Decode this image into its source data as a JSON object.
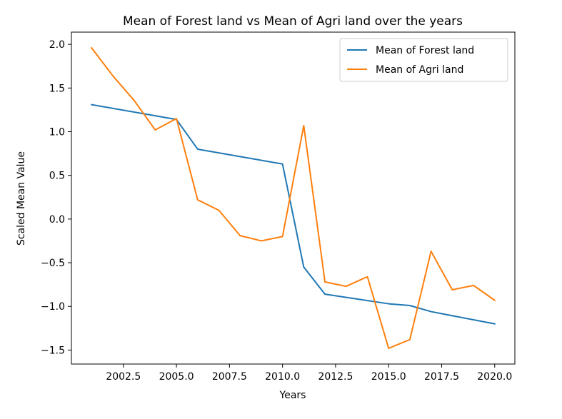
{
  "chart_data": {
    "type": "line",
    "title": "Mean of Forest land vs Mean of Agri land over the years",
    "xlabel": "Years",
    "ylabel": "Scaled Mean Value",
    "xlim": [
      2000.05,
      2020.95
    ],
    "ylim": [
      -1.66,
      2.14
    ],
    "xticks": [
      2002.5,
      2005.0,
      2007.5,
      2010.0,
      2012.5,
      2015.0,
      2017.5,
      2020.0
    ],
    "xtick_labels": [
      "2002.5",
      "2005.0",
      "2007.5",
      "2010.0",
      "2012.5",
      "2015.0",
      "2017.5",
      "2020.0"
    ],
    "yticks": [
      -1.5,
      -1.0,
      -0.5,
      0.0,
      0.5,
      1.0,
      1.5,
      2.0
    ],
    "ytick_labels": [
      "−1.5",
      "−1.0",
      "−0.5",
      "0.0",
      "0.5",
      "1.0",
      "1.5",
      "2.0"
    ],
    "grid": false,
    "legend_position": "top-right",
    "series": [
      {
        "name": "Mean of Forest land",
        "color": "#1f77b4",
        "x": [
          2001,
          2005,
          2006,
          2010,
          2011,
          2012,
          2015,
          2016,
          2017,
          2020
        ],
        "y": [
          1.31,
          1.14,
          0.8,
          0.63,
          -0.55,
          -0.86,
          -0.97,
          -0.99,
          -1.06,
          -1.2
        ]
      },
      {
        "name": "Mean of Agri land",
        "color": "#ff7f0e",
        "x": [
          2001,
          2002,
          2003,
          2004,
          2005,
          2006,
          2007,
          2008,
          2009,
          2010,
          2011,
          2012,
          2013,
          2014,
          2015,
          2016,
          2017,
          2018,
          2019,
          2020
        ],
        "y": [
          1.96,
          1.64,
          1.36,
          1.02,
          1.15,
          0.22,
          0.1,
          -0.19,
          -0.25,
          -0.2,
          1.07,
          -0.72,
          -0.77,
          -0.66,
          -1.48,
          -1.38,
          -0.37,
          -0.81,
          -0.76,
          -0.93
        ]
      }
    ]
  }
}
